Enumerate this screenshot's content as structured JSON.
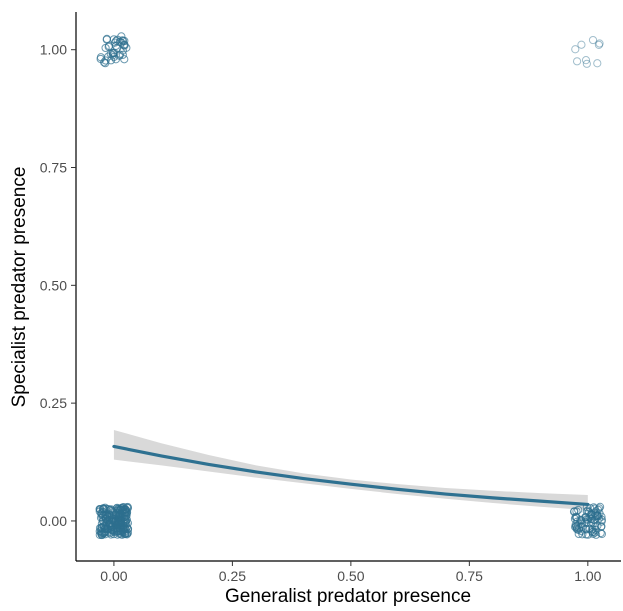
{
  "chart_data": {
    "type": "scatter",
    "title": "",
    "xlabel": "Generalist predator presence",
    "ylabel": "Specialist predator presence",
    "xlim": [
      -0.08,
      1.07
    ],
    "ylim": [
      -0.085,
      1.08
    ],
    "x_ticks": [
      0.0,
      0.25,
      0.5,
      0.75,
      1.0
    ],
    "x_tick_labels": [
      "0.00",
      "0.25",
      "0.50",
      "0.75",
      "1.00"
    ],
    "y_ticks": [
      0.0,
      0.25,
      0.5,
      0.75,
      1.0
    ],
    "y_tick_labels": [
      "0.00",
      "0.25",
      "0.50",
      "0.75",
      "1.00"
    ],
    "grid": false,
    "point_color": "#2e6f8e",
    "line_color": "#2e7191",
    "band_color": "#d9d9d9",
    "jitter_width": 0.03,
    "jitter_height": 0.03,
    "point_groups": [
      {
        "x": 0,
        "y": 0,
        "count": 220,
        "alpha": 0.7
      },
      {
        "x": 0,
        "y": 1,
        "count": 40,
        "alpha": 0.7
      },
      {
        "x": 1,
        "y": 0,
        "count": 85,
        "alpha": 0.7
      },
      {
        "x": 1,
        "y": 1,
        "count": 9,
        "alpha": 0.45
      }
    ],
    "fit_line": {
      "x": [
        0.0,
        0.1,
        0.2,
        0.3,
        0.4,
        0.5,
        0.6,
        0.7,
        0.8,
        0.9,
        1.0
      ],
      "y": [
        0.158,
        0.138,
        0.12,
        0.104,
        0.09,
        0.078,
        0.067,
        0.057,
        0.049,
        0.042,
        0.035
      ],
      "lower": [
        0.13,
        0.118,
        0.105,
        0.092,
        0.08,
        0.068,
        0.057,
        0.047,
        0.038,
        0.03,
        0.023
      ],
      "upper": [
        0.193,
        0.165,
        0.14,
        0.118,
        0.101,
        0.088,
        0.078,
        0.07,
        0.064,
        0.059,
        0.055
      ]
    }
  }
}
